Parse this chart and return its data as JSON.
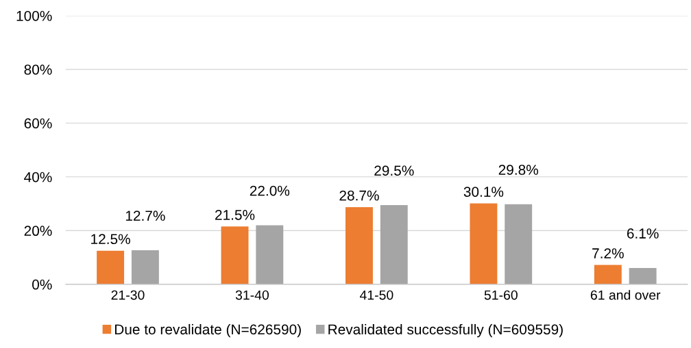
{
  "chart_data": {
    "type": "bar",
    "categories": [
      "21-30",
      "31-40",
      "41-50",
      "51-60",
      "61 and over"
    ],
    "series": [
      {
        "name": "Due to revalidate (N=626590)",
        "color": "#ed7d31",
        "values": [
          12.5,
          21.5,
          28.7,
          30.1,
          7.2
        ],
        "value_labels": [
          "12.5%",
          "21.5%",
          "28.7%",
          "30.1%",
          "7.2%"
        ]
      },
      {
        "name": "Revalidated successfully (N=609559)",
        "color": "#a5a5a5",
        "values": [
          12.7,
          22.0,
          29.5,
          29.8,
          6.1
        ],
        "value_labels": [
          "12.7%",
          "22.0%",
          "29.5%",
          "29.8%",
          "6.1%"
        ]
      }
    ],
    "ylim": [
      0,
      100
    ],
    "yticks": [
      {
        "value": 0,
        "label": "0%"
      },
      {
        "value": 20,
        "label": "20%"
      },
      {
        "value": 40,
        "label": "40%"
      },
      {
        "value": 60,
        "label": "60%"
      },
      {
        "value": 80,
        "label": "80%"
      },
      {
        "value": 100,
        "label": "100%"
      }
    ],
    "grid": "y",
    "legend": "bottom"
  }
}
